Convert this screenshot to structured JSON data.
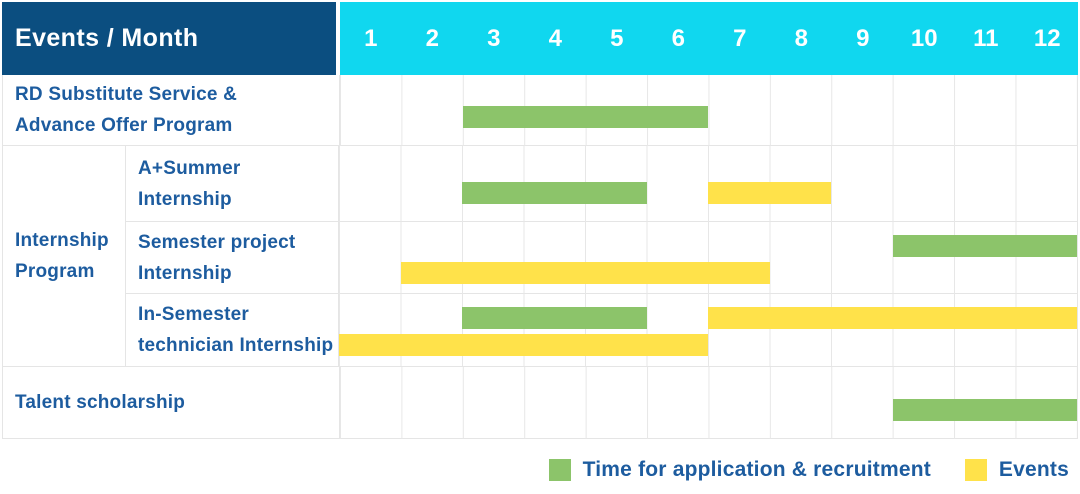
{
  "header": {
    "title": "Events / Month",
    "months": [
      "1",
      "2",
      "3",
      "4",
      "5",
      "6",
      "7",
      "8",
      "9",
      "10",
      "11",
      "12"
    ]
  },
  "colors": {
    "header_bg": "#0b4e80",
    "months_bg": "#10d7ef",
    "label_text": "#1d5c9f",
    "application": "#8cc46a",
    "event": "#ffe24a",
    "grid": "#e7e7e7"
  },
  "chart_data": {
    "type": "gantt",
    "x_axis_label": "Month",
    "x_range": [
      1,
      12
    ],
    "grid": true,
    "rows": [
      {
        "label": "RD Substitute Service & Advance Offer Program",
        "label_lines": [
          "RD Substitute Service &",
          "Advance Offer Program"
        ],
        "group": null,
        "bars": [
          {
            "type": "application",
            "start_month": 3,
            "end_month": 6,
            "lane": "single"
          }
        ]
      },
      {
        "label": "A+Summer Internship",
        "label_lines": [
          "A+Summer",
          "Internship"
        ],
        "group": "Internship Program",
        "bars": [
          {
            "type": "application",
            "start_month": 3,
            "end_month": 5,
            "lane": "single"
          },
          {
            "type": "event",
            "start_month": 7,
            "end_month": 8,
            "lane": "single"
          }
        ]
      },
      {
        "label": "Semester project Internship",
        "label_lines": [
          "Semester project",
          "Internship"
        ],
        "group": "Internship Program",
        "bars": [
          {
            "type": "application",
            "start_month": 10,
            "end_month": 12,
            "lane": "top"
          },
          {
            "type": "event",
            "start_month": 2,
            "end_month": 7,
            "lane": "bottom"
          }
        ]
      },
      {
        "label": "In-Semester technician Internship",
        "label_lines": [
          "In-Semester",
          "technician Internship"
        ],
        "group": "Internship Program",
        "bars": [
          {
            "type": "application",
            "start_month": 3,
            "end_month": 5,
            "lane": "top"
          },
          {
            "type": "event",
            "start_month": 7,
            "end_month": 12,
            "lane": "top"
          },
          {
            "type": "event",
            "start_month": 1,
            "end_month": 6,
            "lane": "bottom"
          }
        ]
      },
      {
        "label": "Talent scholarship",
        "label_lines": [
          "Talent scholarship"
        ],
        "group": null,
        "bars": [
          {
            "type": "application",
            "start_month": 10,
            "end_month": 12,
            "lane": "single"
          }
        ]
      }
    ],
    "group_label_lines": [
      "Internship",
      "Program"
    ]
  },
  "legend": {
    "items": [
      {
        "type": "application",
        "label": "Time for application & recruitment"
      },
      {
        "type": "event",
        "label": "Events"
      }
    ]
  }
}
